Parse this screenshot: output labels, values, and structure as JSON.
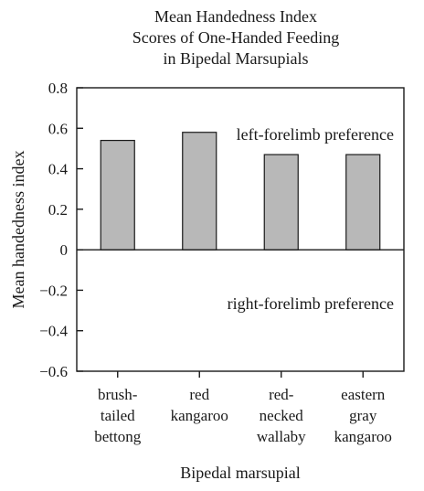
{
  "chart_data": {
    "type": "bar",
    "title_lines": [
      "Mean Handedness Index",
      "Scores of One-Handed Feeding",
      "in Bipedal Marsupials"
    ],
    "xlabel": "Bipedal marsupial",
    "ylabel": "Mean handedness index",
    "ylim": [
      -0.6,
      0.8
    ],
    "yticks": [
      {
        "value": 0.8,
        "label": "0.8"
      },
      {
        "value": 0.6,
        "label": "0.6"
      },
      {
        "value": 0.4,
        "label": "0.4"
      },
      {
        "value": 0.2,
        "label": "0.2"
      },
      {
        "value": 0,
        "label": "0"
      },
      {
        "value": -0.2,
        "label": "−0.2"
      },
      {
        "value": -0.4,
        "label": "−0.4"
      },
      {
        "value": -0.6,
        "label": "−0.6"
      }
    ],
    "categories": [
      {
        "lines": [
          "brush-",
          "tailed",
          "bettong"
        ]
      },
      {
        "lines": [
          "red",
          "kangaroo"
        ]
      },
      {
        "lines": [
          "red-",
          "necked",
          "wallaby"
        ]
      },
      {
        "lines": [
          "eastern",
          "gray",
          "kangaroo"
        ]
      }
    ],
    "values": [
      0.54,
      0.58,
      0.47,
      0.47
    ],
    "annotations": {
      "positive": "left-forelimb preference",
      "negative": "right-forelimb preference"
    },
    "grid": false,
    "bar_color": "#b8b8b8"
  }
}
